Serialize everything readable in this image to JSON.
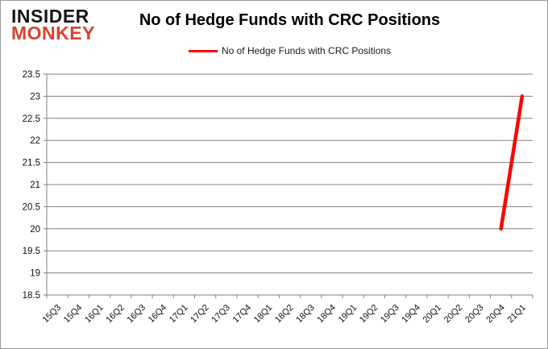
{
  "logo": {
    "line1": "INSIDER",
    "line2": "MONKEY",
    "color_line1": "#171717",
    "color_line2": "#d8432c"
  },
  "header": {
    "title": "No of Hedge Funds with CRC Positions"
  },
  "legend": {
    "label": "No of Hedge Funds with CRC Positions",
    "line_color": "#ff0000"
  },
  "chart_data": {
    "type": "line",
    "title": "No of Hedge Funds with CRC Positions",
    "categories": [
      "15Q3",
      "15Q4",
      "16Q1",
      "16Q2",
      "16Q3",
      "16Q4",
      "17Q1",
      "17Q2",
      "17Q3",
      "17Q4",
      "18Q1",
      "18Q2",
      "18Q3",
      "18Q4",
      "19Q1",
      "19Q2",
      "19Q3",
      "19Q4",
      "20Q1",
      "20Q2",
      "20Q3",
      "20Q4",
      "21Q1"
    ],
    "series": [
      {
        "name": "No of Hedge Funds with CRC Positions",
        "color": "#ff0000",
        "values": [
          null,
          null,
          null,
          null,
          null,
          null,
          null,
          null,
          null,
          null,
          null,
          null,
          null,
          null,
          null,
          null,
          null,
          null,
          null,
          null,
          null,
          20,
          23
        ]
      }
    ],
    "xlabel": "",
    "ylabel": "",
    "ylim": [
      18.5,
      23.5
    ],
    "yticks": [
      18.5,
      19,
      19.5,
      20,
      20.5,
      21,
      21.5,
      22,
      22.5,
      23,
      23.5
    ],
    "grid": true,
    "legend_position": "top",
    "colors": {
      "grid": "#808080",
      "axis": "#808080",
      "tick_label": "#111111"
    }
  }
}
